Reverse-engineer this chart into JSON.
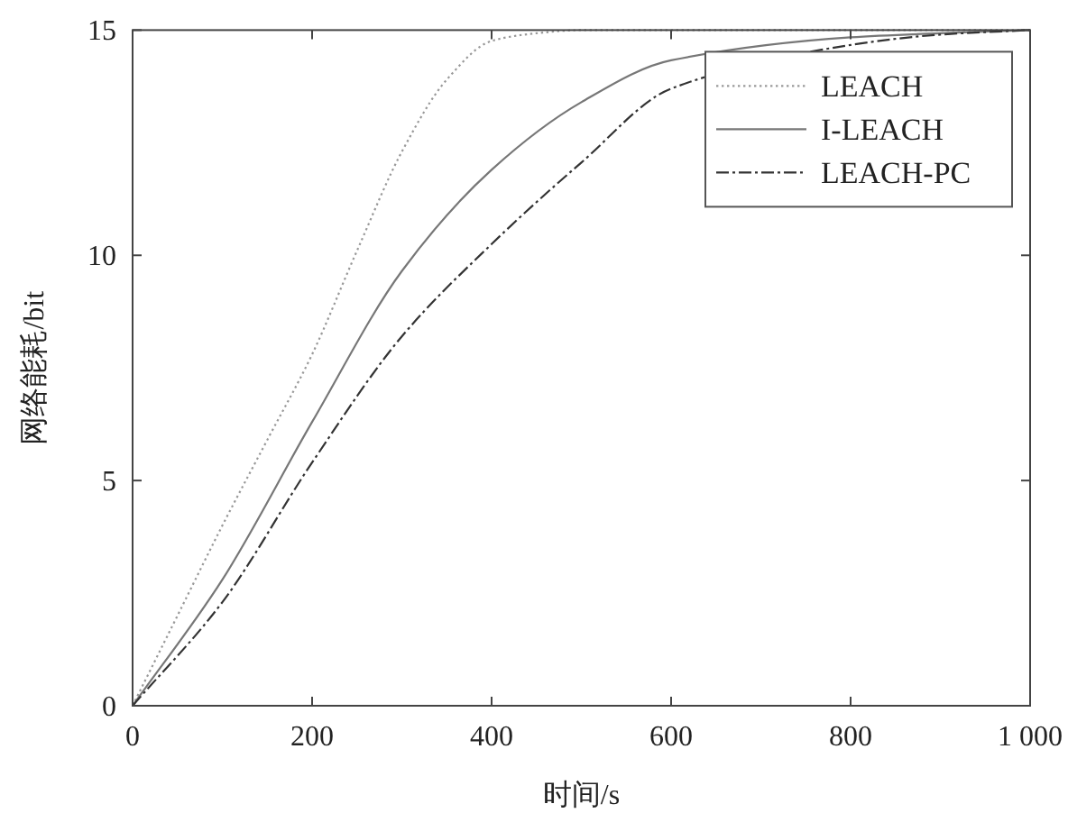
{
  "chart_data": {
    "type": "line",
    "xlabel": "时间/s",
    "ylabel": "网络能耗/bit",
    "xlim": [
      0,
      1000
    ],
    "ylim": [
      0,
      15
    ],
    "xticks": [
      0,
      200,
      400,
      600,
      800,
      {
        "value": 1000,
        "label": "1 000"
      }
    ],
    "yticks": [
      0,
      5,
      10,
      15
    ],
    "grid": false,
    "legend": "top right",
    "marker": "none",
    "series": [
      {
        "name": "LEACH",
        "color": "#999999",
        "line_style": "dotted",
        "x": [
          0,
          50,
          100,
          150,
          200,
          250,
          300,
          350,
          400,
          450,
          500,
          600,
          700,
          800,
          900,
          1000
        ],
        "values": [
          0,
          2.0,
          4.0,
          5.9,
          7.8,
          10.1,
          12.3,
          13.9,
          14.76,
          14.93,
          15,
          15,
          15,
          15,
          15,
          15
        ]
      },
      {
        "name": "I-LEACH",
        "color": "#777777",
        "line_style": "solid",
        "x": [
          0,
          100,
          200,
          300,
          400,
          500,
          600,
          800,
          900,
          1000
        ],
        "values": [
          0,
          2.8,
          6.3,
          9.65,
          11.9,
          13.4,
          14.33,
          14.84,
          14.93,
          15
        ]
      },
      {
        "name": "LEACH-PC",
        "color": "#333333",
        "line_style": "dashed",
        "x": [
          0,
          100,
          200,
          300,
          400,
          500,
          600,
          800,
          900,
          1000
        ],
        "values": [
          0,
          2.3,
          5.4,
          8.2,
          10.25,
          12.06,
          13.7,
          14.67,
          14.9,
          15
        ]
      }
    ]
  }
}
